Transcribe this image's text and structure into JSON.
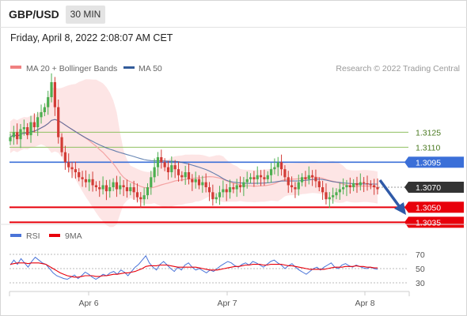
{
  "header": {
    "pair": "GBP/USD",
    "timeframe": "30 MIN"
  },
  "datetime": "Friday, April 8, 2022 2:08:07 AM CET",
  "legend": {
    "ma_boll": "MA 20 + Bollinger Bands",
    "ma50": "MA 50"
  },
  "credit": "Research © 2022 Trading Central",
  "rsi_legend": {
    "rsi": "RSI",
    "ma9": "9MA"
  },
  "colors": {
    "resistance": "#3b6fd8",
    "support": "#e8000b",
    "green_level": "#8fc060",
    "current": "#333333",
    "up_candle": "#4caf50",
    "down_candle": "#d23b35",
    "band": "#fde0e0",
    "ma50": "#335c9a"
  },
  "chart_data": {
    "type": "candlestick",
    "x_labels": [
      "Apr 6",
      "Apr 7",
      "Apr 8"
    ],
    "levels": [
      {
        "value": 1.3125,
        "label": "1.3125",
        "kind": "resistance-minor"
      },
      {
        "value": 1.311,
        "label": "1.3110",
        "kind": "resistance-minor"
      },
      {
        "value": 1.3095,
        "label": "1.3095",
        "kind": "resistance"
      },
      {
        "value": 1.307,
        "label": "1.3070",
        "kind": "current"
      },
      {
        "value": 1.305,
        "label": "1.3050",
        "kind": "support"
      },
      {
        "value": 1.3035,
        "label": "1.3035",
        "kind": "support"
      }
    ],
    "closes": [
      1.312,
      1.3125,
      1.3118,
      1.3128,
      1.313,
      1.3122,
      1.3135,
      1.313,
      1.314,
      1.3145,
      1.315,
      1.316,
      1.3175,
      1.315,
      1.312,
      1.3105,
      1.3095,
      1.309,
      1.3088,
      1.3085,
      1.308,
      1.3078,
      1.3075,
      1.3078,
      1.3072,
      1.307,
      1.3068,
      1.3072,
      1.3066,
      1.307,
      1.3075,
      1.3068,
      1.3072,
      1.307,
      1.3066,
      1.307,
      1.3065,
      1.306,
      1.3058,
      1.3062,
      1.307,
      1.308,
      1.309,
      1.31,
      1.3095,
      1.309,
      1.3085,
      1.3092,
      1.3088,
      1.3082,
      1.308,
      1.3085,
      1.3078,
      1.3075,
      1.3078,
      1.3072,
      1.3075,
      1.307,
      1.3065,
      1.3058,
      1.306,
      1.3065,
      1.3068,
      1.3065,
      1.307,
      1.3068,
      1.3072,
      1.307,
      1.3075,
      1.3078,
      1.308,
      1.3078,
      1.3082,
      1.308,
      1.3078,
      1.3082,
      1.3088,
      1.309,
      1.3095,
      1.3088,
      1.308,
      1.3072,
      1.307,
      1.3068,
      1.3075,
      1.308,
      1.3078,
      1.3082,
      1.308,
      1.3076,
      1.307,
      1.3065,
      1.3058,
      1.306,
      1.3062,
      1.3065,
      1.3068,
      1.307,
      1.3072,
      1.307,
      1.3074,
      1.3072,
      1.3075,
      1.3074,
      1.3073,
      1.3072,
      1.307,
      1.3068
    ],
    "rsi": {
      "y_ticks": [
        70,
        50,
        30
      ],
      "ylim": [
        20,
        80
      ],
      "rsi": [
        55,
        62,
        56,
        64,
        58,
        52,
        60,
        66,
        62,
        58,
        56,
        50,
        44,
        40,
        38,
        36,
        35,
        38,
        41,
        36,
        40,
        45,
        42,
        38,
        35,
        38,
        42,
        40,
        44,
        46,
        42,
        48,
        45,
        40,
        46,
        52,
        56,
        62,
        68,
        58,
        52,
        48,
        56,
        60,
        55,
        50,
        46,
        52,
        48,
        55,
        58,
        52,
        48,
        50,
        47,
        44,
        48,
        46,
        50,
        54,
        57,
        60,
        58,
        54,
        52,
        56,
        58,
        55,
        60,
        58,
        55,
        52,
        56,
        60,
        62,
        58,
        55,
        50,
        54,
        57,
        52,
        48,
        45,
        42,
        46,
        50,
        52,
        48,
        52,
        55,
        58,
        52,
        50,
        55,
        57,
        54,
        52,
        55,
        53,
        51,
        50,
        52,
        50,
        49
      ],
      "ma9": [
        56,
        57,
        58,
        58,
        58,
        57,
        58,
        58,
        58,
        57,
        56,
        53,
        50,
        47,
        44,
        42,
        40,
        39,
        38,
        38,
        39,
        40,
        40,
        40,
        39,
        39,
        40,
        40,
        41,
        42,
        42,
        43,
        44,
        44,
        45,
        46,
        48,
        50,
        53,
        54,
        54,
        54,
        55,
        55,
        55,
        54,
        53,
        52,
        52,
        52,
        52,
        52,
        52,
        51,
        50,
        49,
        48,
        48,
        48,
        49,
        50,
        51,
        52,
        53,
        53,
        54,
        55,
        55,
        56,
        56,
        56,
        55,
        55,
        56,
        56,
        56,
        56,
        55,
        54,
        54,
        53,
        52,
        51,
        50,
        49,
        49,
        49,
        49,
        49,
        50,
        51,
        52,
        52,
        52,
        53,
        53,
        53,
        54,
        53,
        53,
        52,
        52,
        51,
        51
      ]
    }
  }
}
